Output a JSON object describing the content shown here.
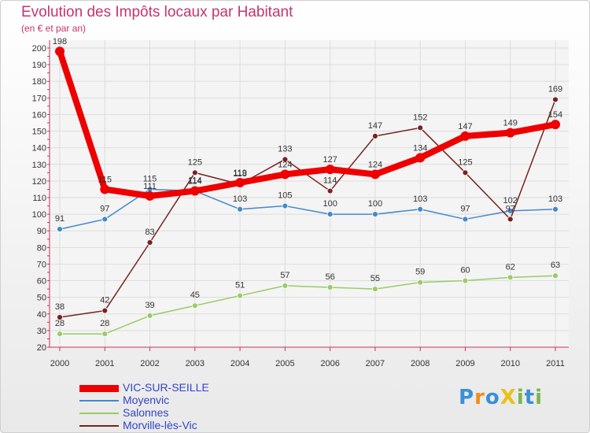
{
  "chart_data": {
    "type": "line",
    "title": "Evolution des Impôts locaux par Habitant",
    "subtitle": "(en € et par an)",
    "xlabel": "",
    "ylabel": "",
    "x": [
      "2000",
      "2001",
      "2002",
      "2003",
      "2004",
      "2005",
      "2006",
      "2007",
      "2008",
      "2009",
      "2010",
      "2011"
    ],
    "ylim": [
      20,
      200
    ],
    "yticks": [
      20,
      30,
      40,
      50,
      60,
      70,
      80,
      90,
      100,
      110,
      120,
      130,
      140,
      150,
      160,
      170,
      180,
      190,
      200
    ],
    "grid": true,
    "legend_position": "bottom-left",
    "series": [
      {
        "name": "VIC-SUR-SEILLE",
        "color": "#ee0000",
        "values": [
          198,
          115,
          111,
          114,
          119,
          124,
          127,
          124,
          134,
          147,
          149,
          154
        ]
      },
      {
        "name": "Moyenvic",
        "color": "#4488cc",
        "values": [
          91,
          97,
          115,
          114,
          103,
          105,
          100,
          100,
          103,
          97,
          102,
          103
        ]
      },
      {
        "name": "Salonnes",
        "color": "#99cc66",
        "values": [
          28,
          28,
          39,
          45,
          51,
          57,
          56,
          55,
          59,
          60,
          62,
          63
        ]
      },
      {
        "name": "Morville-lès-Vic",
        "color": "#772222",
        "values": [
          38,
          42,
          83,
          125,
          118,
          133,
          114,
          147,
          152,
          125,
          97,
          169
        ]
      }
    ]
  },
  "logo": {
    "text": "ProXiti",
    "letters": [
      "P",
      "r",
      "o",
      "X",
      "i",
      "t",
      "i"
    ],
    "colors": [
      "#3a8fd8",
      "#f08c1a",
      "#3a8fd8",
      "#e8c21a",
      "#7ab648",
      "#3a8fd8",
      "#7ab648"
    ]
  }
}
